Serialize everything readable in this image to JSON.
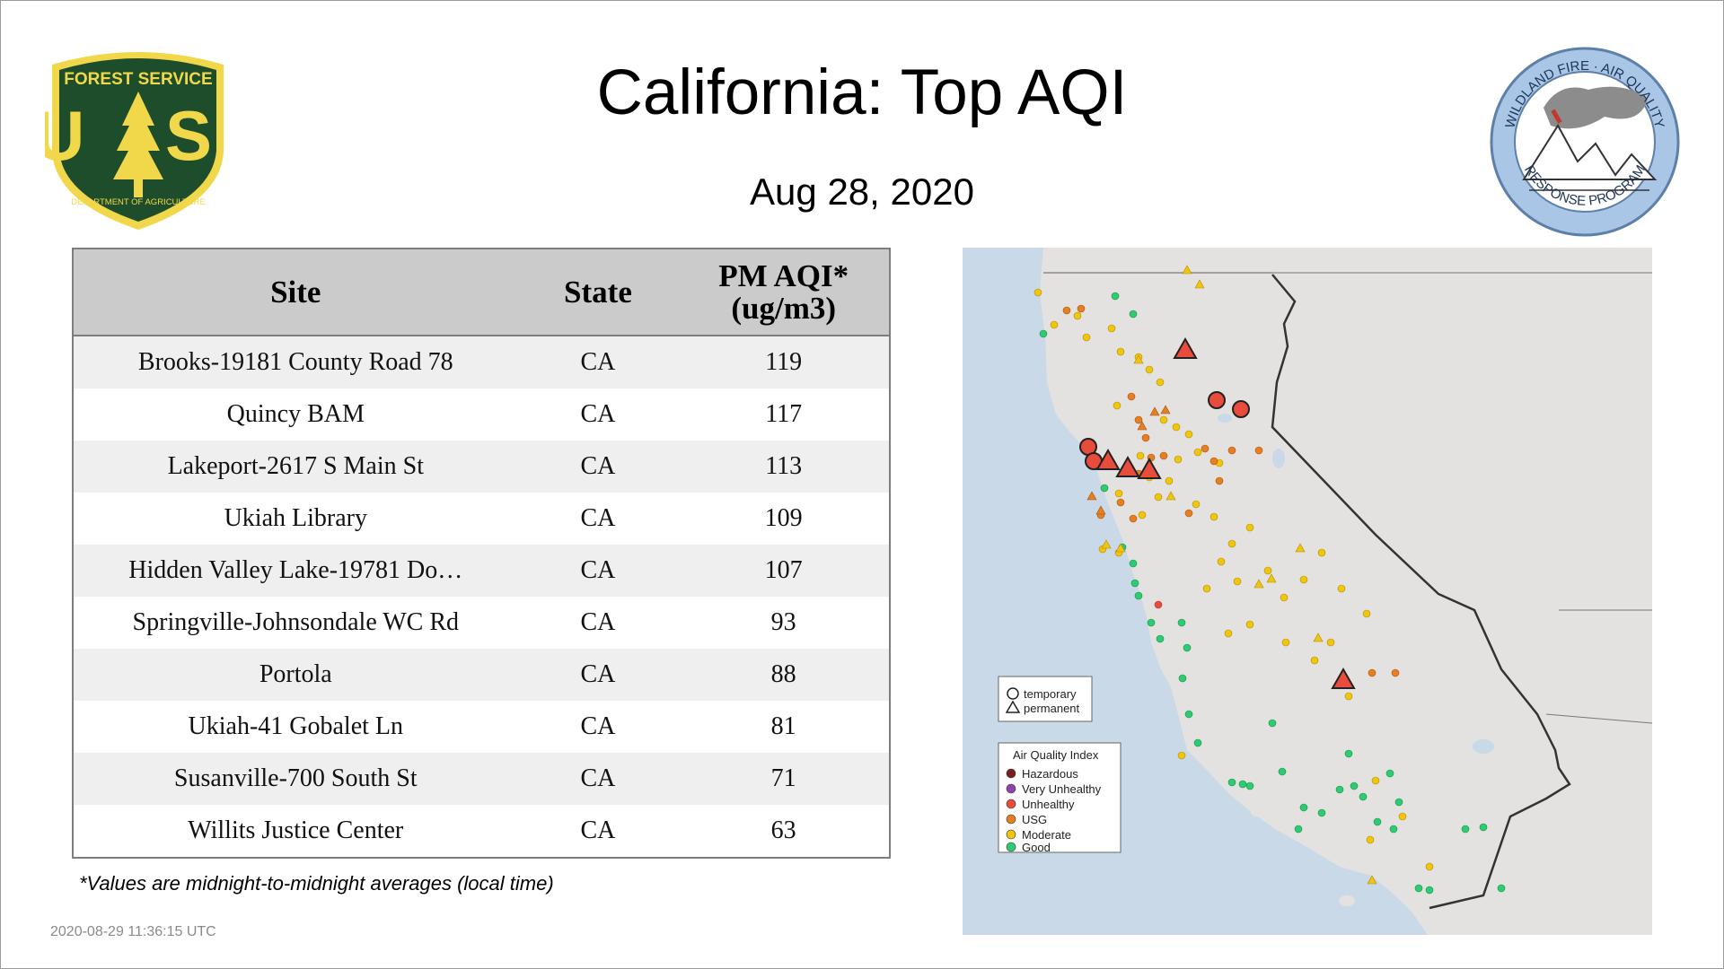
{
  "header": {
    "title": "California: Top AQI",
    "date": "Aug 28, 2020"
  },
  "logos": {
    "left": {
      "name": "forest-service-shield",
      "text_top": "FOREST SERVICE",
      "text_main": "U S",
      "text_bottom": "DEPARTMENT OF AGRICULTURE",
      "colors": {
        "fill": "#1e4d2b",
        "accent": "#f0d84a"
      }
    },
    "right": {
      "name": "wildland-fire-air-quality-seal",
      "text_top": "WILDLAND FIRE · AIR QUALITY",
      "text_bottom": "RESPONSE PROGRAM",
      "colors": {
        "ring": "#a9c6e6",
        "smoke": "#8c8c8c"
      }
    }
  },
  "table": {
    "headers": {
      "site": "Site",
      "state": "State",
      "value_line1": "PM AQI*",
      "value_line2": "(ug/m3)"
    },
    "rows": [
      {
        "site": "Brooks-19181 County Road 78",
        "state": "CA",
        "value": "119"
      },
      {
        "site": "Quincy BAM",
        "state": "CA",
        "value": "117"
      },
      {
        "site": "Lakeport-2617 S Main St",
        "state": "CA",
        "value": "113"
      },
      {
        "site": "Ukiah Library",
        "state": "CA",
        "value": "109"
      },
      {
        "site": "Hidden Valley Lake-19781 Do…",
        "state": "CA",
        "value": "107"
      },
      {
        "site": "Springville-Johnsondale WC Rd",
        "state": "CA",
        "value": "93"
      },
      {
        "site": "Portola",
        "state": "CA",
        "value": "88"
      },
      {
        "site": "Ukiah-41 Gobalet Ln",
        "state": "CA",
        "value": "81"
      },
      {
        "site": "Susanville-700 South St",
        "state": "CA",
        "value": "71"
      },
      {
        "site": "Willits Justice Center",
        "state": "CA",
        "value": "63"
      }
    ]
  },
  "footnote": "*Values are midnight-to-midnight averages (local time)",
  "timestamp": "2020-08-29 11:36:15 UTC",
  "map": {
    "monitor_legend": {
      "temporary": "temporary",
      "permanent": "permanent"
    },
    "aqi_legend": {
      "title": "Air Quality Index",
      "items": [
        {
          "label": "Hazardous",
          "color": "#7a1f1f"
        },
        {
          "label": "Very Unhealthy",
          "color": "#8e44ad"
        },
        {
          "label": "Unhealthy",
          "color": "#e74c3c"
        },
        {
          "label": "USG",
          "color": "#e67e22"
        },
        {
          "label": "Moderate",
          "color": "#f1c40f"
        },
        {
          "label": "Good",
          "color": "#2ecc71"
        }
      ]
    },
    "colors": {
      "ocean": "#c9d9e8",
      "land": "#e3e2e0",
      "border": "#333333"
    }
  }
}
